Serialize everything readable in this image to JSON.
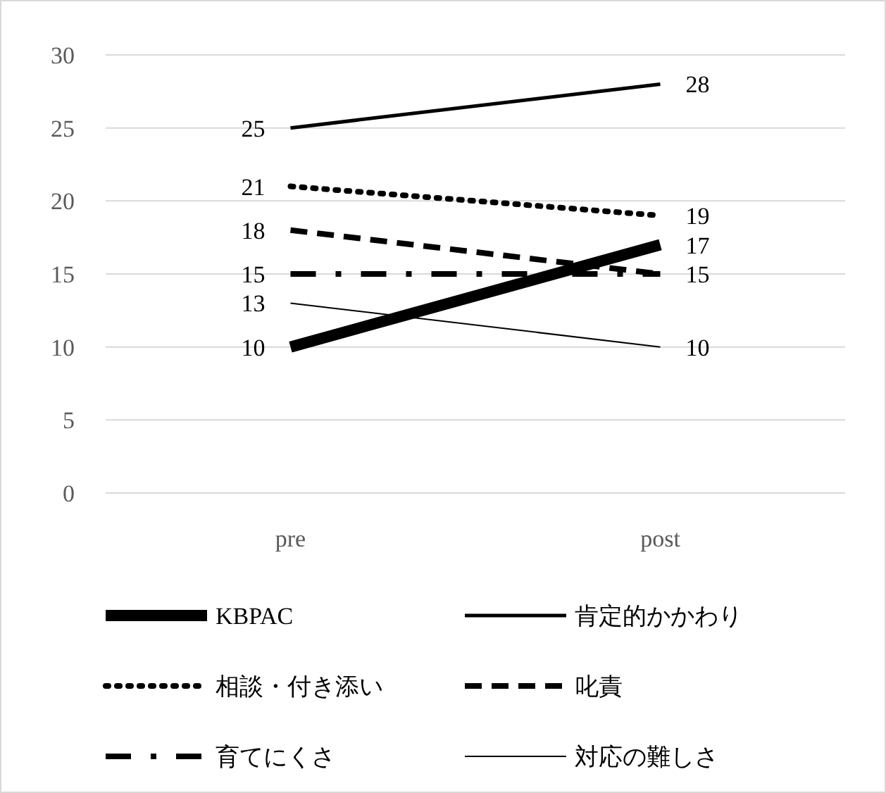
{
  "chart_data": {
    "type": "line",
    "categories": [
      "pre",
      "post"
    ],
    "ylim": [
      0,
      30
    ],
    "yticks": [
      0,
      5,
      10,
      15,
      20,
      25,
      30
    ],
    "grid": "y",
    "legend": "bottom",
    "series": [
      {
        "name": "KBPAC",
        "color": "#000000",
        "values": [
          10,
          17
        ],
        "line_style": "solid",
        "value_labels": [
          "10",
          "17"
        ]
      },
      {
        "name": "肯定的かかわり",
        "color": "#000000",
        "values": [
          25,
          28
        ],
        "line_style": "solid",
        "value_labels": [
          "25",
          "28"
        ]
      },
      {
        "name": "相談・付き添い",
        "color": "#000000",
        "values": [
          21,
          19
        ],
        "line_style": "dotted",
        "value_labels": [
          "21",
          "19"
        ]
      },
      {
        "name": "叱責",
        "color": "#000000",
        "values": [
          18,
          15
        ],
        "line_style": "dashed",
        "value_labels": [
          "18",
          "15"
        ]
      },
      {
        "name": "育てにくさ",
        "color": "#000000",
        "values": [
          15,
          15
        ],
        "line_style": "dashdot",
        "value_labels": [
          "15",
          null
        ]
      },
      {
        "name": "対応の難しさ",
        "color": "#000000",
        "values": [
          13,
          10
        ],
        "line_style": "solid",
        "value_labels": [
          "13",
          "10"
        ]
      }
    ]
  }
}
